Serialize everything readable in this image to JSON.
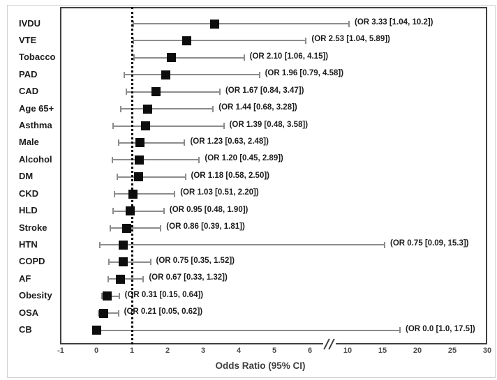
{
  "chart_data": {
    "type": "scatter",
    "subtype": "forest-plot",
    "title": "",
    "xlabel": "Odds Ratio (95% CI)",
    "legend": "none",
    "grid": false,
    "x_axis": {
      "reference_line_x": 1,
      "axis_break": true,
      "segment1_ticks": [
        -1,
        0,
        1,
        2,
        3,
        4,
        5,
        6
      ],
      "segment2_ticks": [
        10,
        15,
        20,
        25,
        30
      ],
      "segment1_range": [
        -1,
        6.5
      ],
      "segment2_range": [
        10,
        30
      ]
    },
    "rows": [
      {
        "label": "IVDU",
        "or": 3.33,
        "lo": 1.04,
        "hi": 10.2,
        "annotation": "(OR 3.33 [1.04, 10.2])"
      },
      {
        "label": "VTE",
        "or": 2.53,
        "lo": 1.04,
        "hi": 5.89,
        "annotation": "(OR 2.53 [1.04, 5.89])"
      },
      {
        "label": "Tobacco",
        "or": 2.1,
        "lo": 1.06,
        "hi": 4.15,
        "annotation": "(OR 2.10 [1.06, 4.15])"
      },
      {
        "label": "PAD",
        "or": 1.96,
        "lo": 0.79,
        "hi": 4.58,
        "annotation": "(OR 1.96 [0.79, 4.58])"
      },
      {
        "label": "CAD",
        "or": 1.67,
        "lo": 0.84,
        "hi": 3.47,
        "annotation": "(OR 1.67 [0.84, 3.47])"
      },
      {
        "label": "Age 65+",
        "or": 1.44,
        "lo": 0.68,
        "hi": 3.28,
        "annotation": "(OR 1.44 [0.68, 3.28])"
      },
      {
        "label": "Asthma",
        "or": 1.39,
        "lo": 0.48,
        "hi": 3.58,
        "annotation": "(OR 1.39 [0.48, 3.58])"
      },
      {
        "label": "Male",
        "or": 1.23,
        "lo": 0.63,
        "hi": 2.48,
        "annotation": "(OR 1.23 [0.63, 2.48])"
      },
      {
        "label": "Alcohol",
        "or": 1.2,
        "lo": 0.45,
        "hi": 2.89,
        "annotation": "(OR 1.20 [0.45, 2.89])"
      },
      {
        "label": "DM",
        "or": 1.18,
        "lo": 0.58,
        "hi": 2.5,
        "annotation": "(OR 1.18 [0.58, 2.50])"
      },
      {
        "label": "CKD",
        "or": 1.03,
        "lo": 0.51,
        "hi": 2.2,
        "annotation": "(OR 1.03 [0.51, 2.20])"
      },
      {
        "label": "HLD",
        "or": 0.95,
        "lo": 0.48,
        "hi": 1.9,
        "annotation": "(OR 0.95 [0.48, 1.90])"
      },
      {
        "label": "Stroke",
        "or": 0.86,
        "lo": 0.39,
        "hi": 1.81,
        "annotation": "(OR 0.86 [0.39, 1.81])"
      },
      {
        "label": "HTN",
        "or": 0.75,
        "lo": 0.09,
        "hi": 15.3,
        "annotation": "(OR 0.75 [0.09, 15.3])"
      },
      {
        "label": "COPD",
        "or": 0.75,
        "lo": 0.35,
        "hi": 1.52,
        "annotation": "(OR 0.75 [0.35, 1.52])"
      },
      {
        "label": "AF",
        "or": 0.67,
        "lo": 0.33,
        "hi": 1.32,
        "annotation": "(OR 0.67 [0.33, 1.32])"
      },
      {
        "label": "Obesity",
        "or": 0.31,
        "lo": 0.15,
        "hi": 0.64,
        "annotation": "(OR 0.31 [0.15, 0.64])"
      },
      {
        "label": "OSA",
        "or": 0.21,
        "lo": 0.05,
        "hi": 0.62,
        "annotation": "(OR 0.21 [0.05, 0.62])"
      },
      {
        "label": "CB",
        "or": 0.0,
        "lo": 1.0,
        "hi": 17.5,
        "annotation": "(OR 0.0 [1.0, 17.5])"
      }
    ],
    "colors": {
      "marker": "#0d0d0d",
      "ci_line": "#8c8c8c",
      "reference_line": "#000000",
      "plot_border": "#3f3f3f",
      "text": "#1c1c1c",
      "tick_text": "#4d4d4d"
    }
  }
}
